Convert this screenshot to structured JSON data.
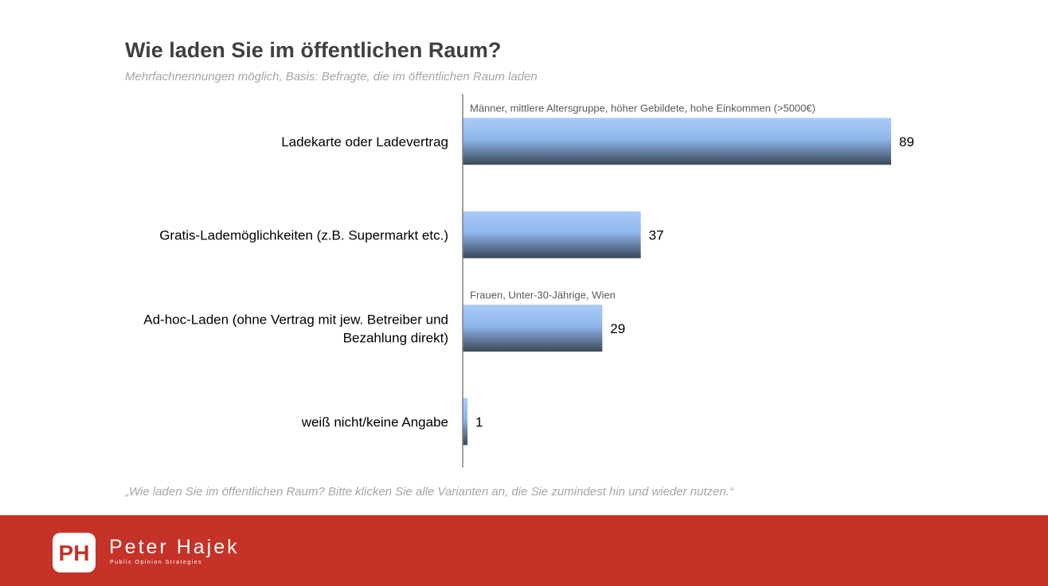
{
  "title": "Wie laden Sie im öffentlichen Raum?",
  "subtitle": "Mehrfachnennungen möglich, Basis: Befragte, die im öffentlichen Raum laden",
  "footnote": "„Wie laden Sie im öffentlichen Raum? Bitte klicken Sie alle Varianten an, die Sie zumindest hin und wieder nutzen.“",
  "brand": {
    "name": "Peter Hajek",
    "tagline": "Public Opinion Strategies",
    "logo_text": "PH"
  },
  "colors": {
    "bar_top": "#a9cbf7",
    "bar_mid": "#8fb7ec",
    "bar_bottom": "#3b4757",
    "footer": "#c53227",
    "text": "#000000",
    "annotation": "#595959"
  },
  "chart_data": {
    "type": "bar",
    "orientation": "horizontal",
    "title": "Wie laden Sie im öffentlichen Raum?",
    "xlabel": "",
    "ylabel": "",
    "xlim": [
      0,
      100
    ],
    "grid": false,
    "categories": [
      [
        "Ladekarte oder Ladevertrag"
      ],
      [
        "Gratis-Lademöglichkeiten (z.B. Supermarkt etc.)"
      ],
      [
        "Ad-hoc-Laden (ohne Vertrag mit jew. Betreiber und",
        "Bezahlung direkt)"
      ],
      [
        "weiß nicht/keine Angabe"
      ]
    ],
    "values": [
      89,
      37,
      29,
      1
    ],
    "annotations": [
      "Männer, mittlere Altersgruppe, höher Gebildete, hohe Einkommen (>5000€)",
      "",
      "Frauen, Unter-30-Jährige, Wien",
      ""
    ]
  }
}
